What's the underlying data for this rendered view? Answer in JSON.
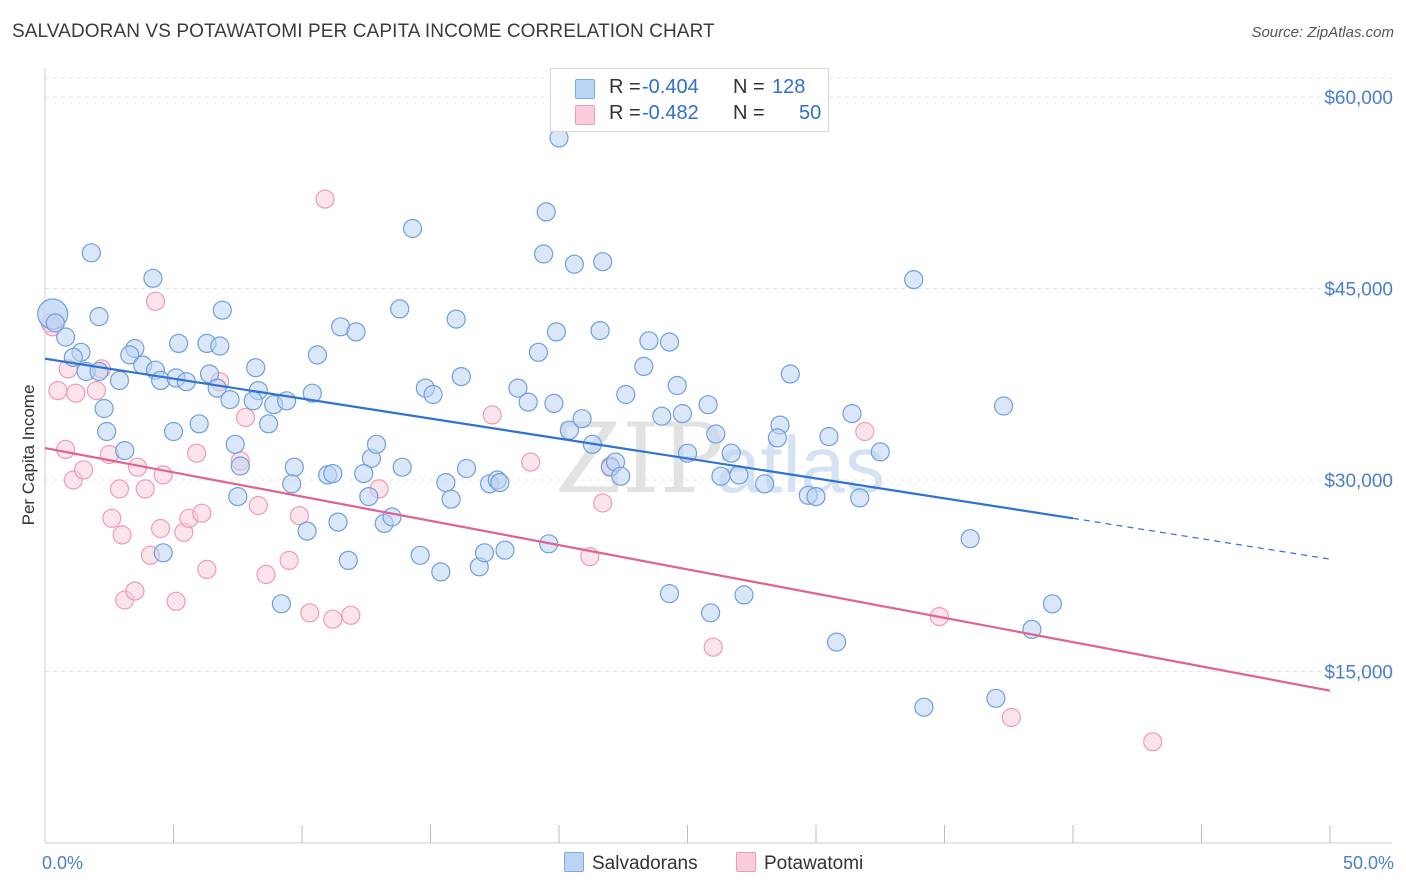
{
  "header": {
    "title": "SALVADORAN VS POTAWATOMI PER CAPITA INCOME CORRELATION CHART",
    "source": "Source: ZipAtlas.com"
  },
  "legend": {
    "r_label": "R =",
    "n_label": "N =",
    "rows": [
      {
        "r": "-0.404",
        "n": "128",
        "color": "#a9c8f0"
      },
      {
        "r": "-0.482",
        "n": "50",
        "color": "#f7b8cb"
      }
    ]
  },
  "bottom_legend": {
    "series1": "Salvadorans",
    "series2": "Potawatomi"
  },
  "watermark": {
    "part1": "ZIP",
    "part2": "atlas"
  },
  "chart_data": {
    "type": "scatter",
    "title": "SALVADORAN VS POTAWATOMI PER CAPITA INCOME CORRELATION CHART",
    "xlabel": "",
    "ylabel": "Per Capita Income",
    "xlim": [
      0,
      50
    ],
    "ylim": [
      2000,
      63000
    ],
    "x_tick_labels": [
      {
        "value": 0,
        "label": "0.0%"
      },
      {
        "value": 50,
        "label": "50.0%"
      }
    ],
    "y_ticks": [
      {
        "value": 15000,
        "label": "$15,000"
      },
      {
        "value": 30000,
        "label": "$30,000"
      },
      {
        "value": 45000,
        "label": "$45,000"
      },
      {
        "value": 60000,
        "label": "$60,000"
      }
    ],
    "grid": true,
    "legend_position": "top-center",
    "series": [
      {
        "name": "Salvadorans",
        "color": "#6f9fe0",
        "fill": "#bcd4f3",
        "trend": {
          "x0": 0,
          "y0": 39500,
          "x1": 40,
          "y1": 27000,
          "dash_x1": 50,
          "dash_y1": 23800
        },
        "points": [
          [
            0.3,
            43000
          ],
          [
            0.4,
            42300
          ],
          [
            0.8,
            41200
          ],
          [
            1.8,
            47800
          ],
          [
            2.1,
            42800
          ],
          [
            4.2,
            45800
          ],
          [
            3.5,
            40300
          ],
          [
            3.3,
            39800
          ],
          [
            1.4,
            40000
          ],
          [
            1.1,
            39600
          ],
          [
            1.6,
            38500
          ],
          [
            2.1,
            38500
          ],
          [
            2.9,
            37800
          ],
          [
            3.8,
            39000
          ],
          [
            2.3,
            35600
          ],
          [
            3.1,
            32300
          ],
          [
            4.3,
            38600
          ],
          [
            4.5,
            37800
          ],
          [
            5.2,
            40700
          ],
          [
            5.1,
            38000
          ],
          [
            5.0,
            33800
          ],
          [
            5.5,
            37700
          ],
          [
            6.3,
            40700
          ],
          [
            6.8,
            40500
          ],
          [
            6.9,
            43300
          ],
          [
            6.4,
            38300
          ],
          [
            6.7,
            37200
          ],
          [
            6.0,
            34400
          ],
          [
            7.2,
            36300
          ],
          [
            7.4,
            32800
          ],
          [
            7.6,
            31100
          ],
          [
            7.5,
            28700
          ],
          [
            8.2,
            38800
          ],
          [
            8.3,
            37000
          ],
          [
            8.1,
            36200
          ],
          [
            8.7,
            34400
          ],
          [
            8.9,
            35900
          ],
          [
            9.4,
            36200
          ],
          [
            9.7,
            31000
          ],
          [
            9.6,
            29700
          ],
          [
            10.4,
            36800
          ],
          [
            10.6,
            39800
          ],
          [
            11.0,
            30400
          ],
          [
            10.2,
            26000
          ],
          [
            11.2,
            30500
          ],
          [
            11.4,
            26700
          ],
          [
            11.5,
            42000
          ],
          [
            12.1,
            41600
          ],
          [
            12.6,
            28700
          ],
          [
            11.8,
            23700
          ],
          [
            12.7,
            31700
          ],
          [
            12.9,
            32800
          ],
          [
            12.4,
            30500
          ],
          [
            13.8,
            43400
          ],
          [
            13.2,
            26600
          ],
          [
            13.5,
            27100
          ],
          [
            13.9,
            31000
          ],
          [
            14.3,
            49700
          ],
          [
            14.6,
            24100
          ],
          [
            14.8,
            37200
          ],
          [
            15.1,
            36700
          ],
          [
            15.6,
            29800
          ],
          [
            15.8,
            28500
          ],
          [
            15.4,
            22800
          ],
          [
            16.0,
            42600
          ],
          [
            16.2,
            38100
          ],
          [
            16.4,
            30900
          ],
          [
            16.9,
            23200
          ],
          [
            17.1,
            24300
          ],
          [
            17.3,
            29700
          ],
          [
            17.6,
            30000
          ],
          [
            17.7,
            29800
          ],
          [
            17.9,
            24500
          ],
          [
            18.4,
            37200
          ],
          [
            18.8,
            36100
          ],
          [
            19.2,
            40000
          ],
          [
            19.5,
            51000
          ],
          [
            19.4,
            47700
          ],
          [
            20.0,
            56800
          ],
          [
            19.9,
            41600
          ],
          [
            19.8,
            36000
          ],
          [
            20.4,
            33900
          ],
          [
            20.6,
            46900
          ],
          [
            20.9,
            34800
          ],
          [
            21.3,
            32800
          ],
          [
            21.6,
            41700
          ],
          [
            21.7,
            47100
          ],
          [
            22.0,
            31000
          ],
          [
            22.2,
            31400
          ],
          [
            22.4,
            30300
          ],
          [
            22.6,
            36700
          ],
          [
            23.3,
            38900
          ],
          [
            23.5,
            40900
          ],
          [
            24.0,
            35000
          ],
          [
            24.3,
            40800
          ],
          [
            24.6,
            37400
          ],
          [
            24.8,
            35200
          ],
          [
            25.0,
            32100
          ],
          [
            25.8,
            35900
          ],
          [
            26.1,
            33600
          ],
          [
            26.3,
            30300
          ],
          [
            26.7,
            32100
          ],
          [
            27.0,
            30400
          ],
          [
            27.2,
            21000
          ],
          [
            25.9,
            19600
          ],
          [
            28.0,
            29700
          ],
          [
            28.6,
            34300
          ],
          [
            28.5,
            33300
          ],
          [
            29.0,
            38300
          ],
          [
            29.7,
            28800
          ],
          [
            30.0,
            28700
          ],
          [
            30.5,
            33400
          ],
          [
            30.8,
            17300
          ],
          [
            31.4,
            35200
          ],
          [
            31.7,
            28600
          ],
          [
            32.5,
            32200
          ],
          [
            33.8,
            45700
          ],
          [
            34.2,
            12200
          ],
          [
            36.0,
            25400
          ],
          [
            37.3,
            35800
          ],
          [
            37.0,
            12900
          ],
          [
            38.4,
            18300
          ],
          [
            39.2,
            20300
          ],
          [
            24.3,
            21100
          ],
          [
            19.6,
            25000
          ],
          [
            4.6,
            24300
          ],
          [
            9.2,
            20300
          ],
          [
            2.4,
            33800
          ]
        ]
      },
      {
        "name": "Potawatomi",
        "color": "#ef9bb6",
        "fill": "#f9cddb",
        "trend": {
          "x0": 0,
          "y0": 32500,
          "x1": 50,
          "y1": 13500
        },
        "points": [
          [
            0.2,
            42300
          ],
          [
            0.3,
            42000
          ],
          [
            0.5,
            37000
          ],
          [
            0.9,
            38700
          ],
          [
            1.2,
            36800
          ],
          [
            0.8,
            32400
          ],
          [
            1.1,
            30000
          ],
          [
            1.5,
            30800
          ],
          [
            2.2,
            38700
          ],
          [
            2.0,
            37000
          ],
          [
            2.5,
            32000
          ],
          [
            2.9,
            29300
          ],
          [
            2.6,
            27000
          ],
          [
            3.0,
            25700
          ],
          [
            3.1,
            20600
          ],
          [
            3.5,
            21300
          ],
          [
            3.6,
            31000
          ],
          [
            3.9,
            29300
          ],
          [
            4.1,
            24100
          ],
          [
            4.5,
            26200
          ],
          [
            4.6,
            30400
          ],
          [
            4.3,
            44000
          ],
          [
            5.1,
            20500
          ],
          [
            5.4,
            25900
          ],
          [
            5.6,
            27000
          ],
          [
            5.9,
            32100
          ],
          [
            6.1,
            27400
          ],
          [
            6.3,
            23000
          ],
          [
            6.8,
            37700
          ],
          [
            7.6,
            31500
          ],
          [
            7.8,
            34900
          ],
          [
            8.3,
            28000
          ],
          [
            8.6,
            22600
          ],
          [
            9.5,
            23700
          ],
          [
            9.9,
            27200
          ],
          [
            10.3,
            19600
          ],
          [
            10.9,
            52000
          ],
          [
            11.2,
            19100
          ],
          [
            11.9,
            19400
          ],
          [
            13.0,
            29300
          ],
          [
            17.4,
            35100
          ],
          [
            18.9,
            31400
          ],
          [
            21.2,
            24000
          ],
          [
            21.7,
            28200
          ],
          [
            26.0,
            16900
          ],
          [
            31.9,
            33800
          ],
          [
            34.8,
            19300
          ],
          [
            37.6,
            11400
          ],
          [
            43.1,
            9500
          ],
          [
            22.0,
            31100
          ]
        ]
      }
    ]
  }
}
